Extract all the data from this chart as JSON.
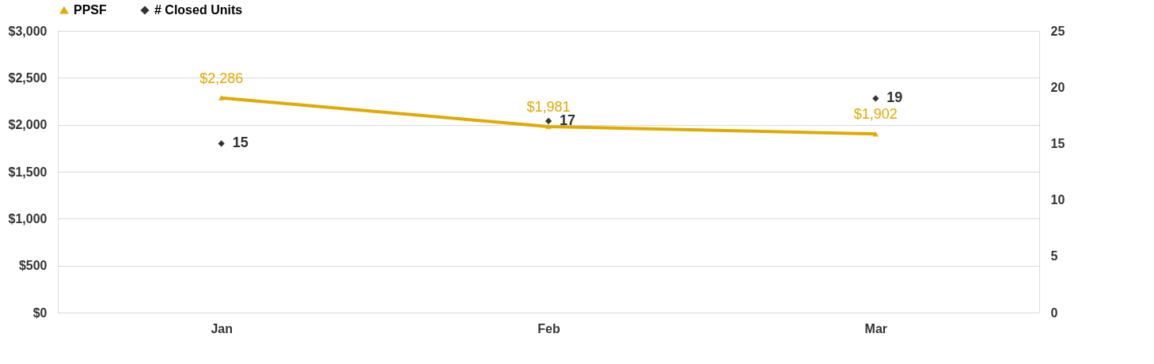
{
  "chart_data": {
    "type": "line",
    "categories": [
      "Jan",
      "Feb",
      "Mar"
    ],
    "series": [
      {
        "name": "PPSF",
        "color": "#e0aa00",
        "marker": "triangle",
        "values": [
          2286,
          1981,
          1902
        ],
        "value_labels": [
          "$2,286",
          "$1,981",
          "$1,902"
        ]
      },
      {
        "name": "# Closed Units",
        "type": "scatter",
        "axis": "y2",
        "color": "#333333",
        "marker": "diamond",
        "values": [
          15,
          17,
          19
        ],
        "value_labels": [
          "15",
          "17",
          "19"
        ]
      }
    ],
    "ylim": [
      0,
      3000
    ],
    "yticks": [
      {
        "value": 0,
        "label": "$0"
      },
      {
        "value": 500,
        "label": "$500"
      },
      {
        "value": 1000,
        "label": "$1,000"
      },
      {
        "value": 1500,
        "label": "$1,500"
      },
      {
        "value": 2000,
        "label": "$2,000"
      },
      {
        "value": 2500,
        "label": "$2,500"
      },
      {
        "value": 3000,
        "label": "$3,000"
      }
    ],
    "y2lim": [
      0,
      25
    ],
    "y2ticks": [
      0,
      5,
      10,
      15,
      20,
      25
    ],
    "grid": "y",
    "legend": "top"
  }
}
